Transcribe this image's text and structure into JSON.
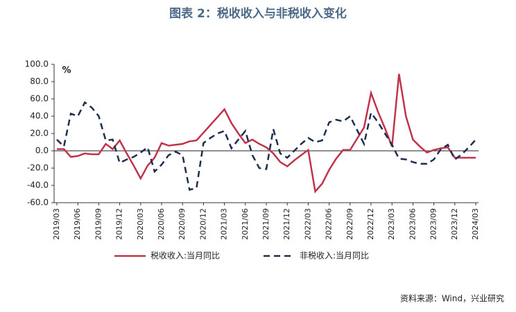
{
  "chart_data": {
    "type": "line",
    "title": "图表 2：税收收入与非税收入变化",
    "unit": "%",
    "source": "资料来源：Wind，兴业研究",
    "categories": [
      "2019/03",
      null,
      null,
      "2019/06",
      null,
      null,
      "2019/09",
      null,
      null,
      "2019/12",
      null,
      null,
      "2020/03",
      null,
      null,
      "2020/06",
      null,
      null,
      "2020/09",
      null,
      null,
      "2020/12",
      null,
      null,
      "2021/03",
      null,
      null,
      "2021/06",
      null,
      null,
      "2021/09",
      null,
      null,
      "2021/12",
      null,
      null,
      "2022/03",
      null,
      null,
      "2022/06",
      null,
      null,
      "2022/09",
      null,
      null,
      "2022/12",
      null,
      null,
      "2023/03",
      null,
      null,
      "2023/06",
      null,
      null,
      "2023/09",
      null,
      null,
      "2023/12",
      null,
      null,
      "2024/03"
    ],
    "series": [
      {
        "name": "税收收入:当月同比",
        "color": "#c0334a",
        "dashed": false,
        "values": [
          2,
          2,
          -7,
          -6,
          -3,
          -4,
          -4,
          8,
          2,
          12,
          -3,
          -17,
          -32,
          -17,
          -8,
          9,
          6,
          7,
          8,
          11,
          12,
          21,
          30,
          39,
          48,
          32,
          20,
          9,
          13,
          8,
          4,
          -3,
          -13,
          -18,
          -11,
          -5,
          1,
          -47,
          -38,
          -22,
          -9,
          1,
          1,
          14,
          27,
          67,
          45,
          26,
          5,
          89,
          40,
          13,
          5,
          -2,
          1,
          3,
          4,
          -8,
          -8,
          -8,
          -8
        ]
      },
      {
        "name": "非税收入:当月同比",
        "color": "#1f2d4d",
        "dashed": true,
        "values": [
          13,
          5,
          43,
          40,
          56,
          50,
          40,
          12,
          13,
          -14,
          -10,
          -7,
          -2,
          4,
          -24,
          -16,
          -5,
          -1,
          -5,
          -45,
          -43,
          9,
          15,
          20,
          23,
          3,
          13,
          23,
          -5,
          -20,
          -21,
          25,
          -3,
          -8,
          0,
          8,
          15,
          10,
          12,
          33,
          36,
          34,
          40,
          24,
          8,
          44,
          33,
          20,
          7,
          -9,
          -10,
          -13,
          -15,
          -15,
          -10,
          2,
          7,
          -10,
          -4,
          4,
          13
        ]
      }
    ],
    "ylim": [
      -60,
      100
    ],
    "yticks": [
      {
        "value": -60,
        "label": "-60.0"
      },
      {
        "value": -40,
        "label": "-40.0"
      },
      {
        "value": -20,
        "label": "-20.0"
      },
      {
        "value": 0,
        "label": "0.0"
      },
      {
        "value": 20,
        "label": "20.0"
      },
      {
        "value": 40,
        "label": "40.0"
      },
      {
        "value": 60,
        "label": "60.0"
      },
      {
        "value": 80,
        "label": "80.0"
      },
      {
        "value": 100,
        "label": "100.0"
      }
    ]
  }
}
